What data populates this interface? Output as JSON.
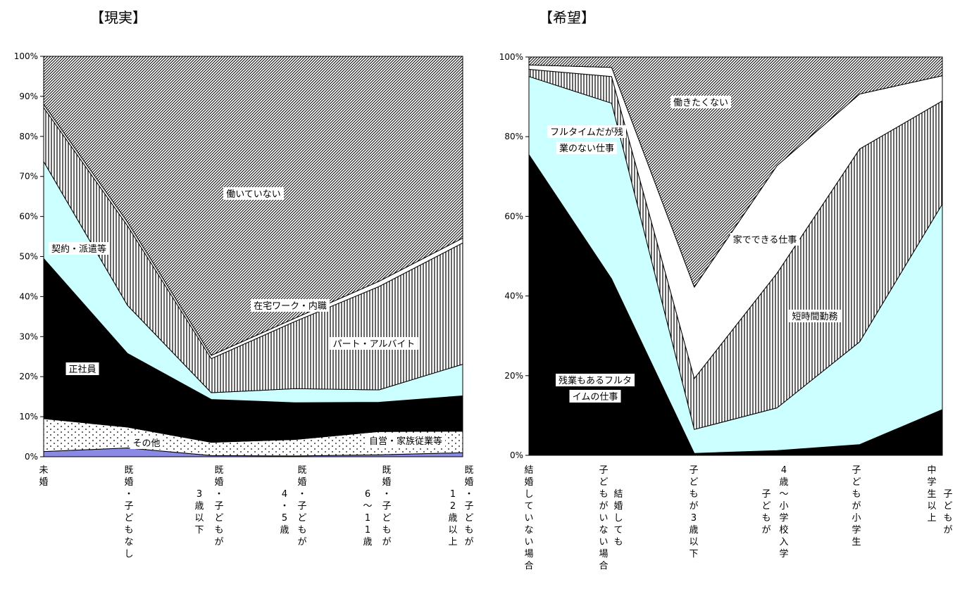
{
  "chart_data": [
    {
      "type": "area",
      "stacked": true,
      "title": "【現実】",
      "categories": [
        {
          "label": "未婚",
          "cols": [
            "未婚"
          ]
        },
        {
          "label": "既婚・子どもなし",
          "cols": [
            "既婚・子どもなし"
          ]
        },
        {
          "label": "既婚・子どもが3歳以下",
          "cols": [
            "既婚・子どもが",
            "3歳以下"
          ]
        },
        {
          "label": "既婚・子どもが4・5歳",
          "cols": [
            "既婚・子どもが",
            "4・5歳"
          ]
        },
        {
          "label": "既婚・子どもが6～11歳",
          "cols": [
            "既婚・子どもが",
            "6～11歳"
          ]
        },
        {
          "label": "既婚・子どもが12歳以上",
          "cols": [
            "既婚・子どもが",
            "12歳以上"
          ]
        }
      ],
      "ylim": [
        0,
        100
      ],
      "yticks": [
        "0%",
        "10%",
        "20%",
        "30%",
        "40%",
        "50%",
        "60%",
        "70%",
        "80%",
        "90%",
        "100%"
      ],
      "series": [
        {
          "name": "その他",
          "color": "#8a8ae6",
          "pattern": "solid",
          "values": [
            1.3,
            2.2,
            0.3,
            0.2,
            0.5,
            1.0
          ]
        },
        {
          "name": "自営・家族従業等",
          "color": "#ffffff",
          "pattern": "dots",
          "values": [
            8.2,
            5.2,
            3.3,
            4.1,
            5.8,
            5.4
          ]
        },
        {
          "name": "正社員",
          "color": "#000000",
          "pattern": "solid",
          "values": [
            40.0,
            18.4,
            10.7,
            9.2,
            7.3,
            8.8
          ]
        },
        {
          "name": "契約・派遣等",
          "color": "#ccffff",
          "pattern": "solid",
          "values": [
            24.2,
            12.0,
            1.7,
            3.5,
            3.1,
            7.9
          ]
        },
        {
          "name": "パート・アルバイト",
          "color": "#ffffff",
          "pattern": "vstripe",
          "values": [
            13.5,
            19.9,
            8.5,
            16.8,
            25.8,
            30.3
          ]
        },
        {
          "name": "在宅ワーク・内職",
          "color": "#ffffff",
          "pattern": "solid",
          "values": [
            0.8,
            0.9,
            0.8,
            0.8,
            1.3,
            1.2
          ]
        },
        {
          "name": "働いていない",
          "color": "#ffffff",
          "pattern": "diag",
          "values": [
            12.0,
            41.4,
            74.7,
            65.4,
            56.2,
            45.4
          ]
        }
      ],
      "labels": [
        "働いていない",
        "在宅ワーク・内職",
        "パート・アルバイト",
        "契約・派遣等",
        "正社員",
        "その他",
        "自営・家族従業等"
      ]
    },
    {
      "type": "area",
      "stacked": true,
      "title": "【希望】",
      "categories": [
        {
          "label": "結婚していない場合",
          "cols": [
            "結婚していない場合"
          ]
        },
        {
          "label": "結婚しても子どもがいない場合",
          "cols": [
            "子どもがいない場合",
            "結婚しても"
          ]
        },
        {
          "label": "子どもが3歳以下",
          "cols": [
            "子どもが3歳以下"
          ]
        },
        {
          "label": "子どもが4歳～小学校入学",
          "cols": [
            "4歳～小学校入学",
            "子どもが"
          ]
        },
        {
          "label": "子どもが小学生",
          "cols": [
            "子どもが小学生"
          ]
        },
        {
          "label": "子どもが中学生以上",
          "cols": [
            "中学生以上",
            "子どもが"
          ]
        }
      ],
      "ylim": [
        0,
        100
      ],
      "yticks": [
        "0%",
        "20%",
        "40%",
        "60%",
        "80%",
        "100%"
      ],
      "series": [
        {
          "name": "残業もあるフルタイムの仕事",
          "color": "#000000",
          "pattern": "solid",
          "values": [
            75.5,
            44.3,
            0.5,
            1.2,
            2.7,
            11.5
          ]
        },
        {
          "name": "フルタイムだが残業のない仕事",
          "color": "#ccffff",
          "pattern": "solid",
          "values": [
            19.6,
            44.1,
            6.0,
            10.7,
            25.8,
            51.6
          ]
        },
        {
          "name": "短時間勤務",
          "color": "#ffffff",
          "pattern": "vstripe",
          "values": [
            1.8,
            6.7,
            12.8,
            33.8,
            48.4,
            25.9
          ]
        },
        {
          "name": "家でできる仕事",
          "color": "#ffffff",
          "pattern": "solid",
          "values": [
            1.1,
            2.3,
            22.9,
            27.0,
            13.8,
            6.3
          ]
        },
        {
          "name": "働きたくない",
          "color": "#ffffff",
          "pattern": "diag",
          "values": [
            2.0,
            2.6,
            57.8,
            27.3,
            9.3,
            4.7
          ]
        }
      ],
      "labels": [
        "働きたくない",
        "フルタイムだが残",
        "業のない仕事",
        "家でできる仕事",
        "短時間勤務",
        "残業もあるフルタ",
        "イムの仕事"
      ]
    }
  ]
}
